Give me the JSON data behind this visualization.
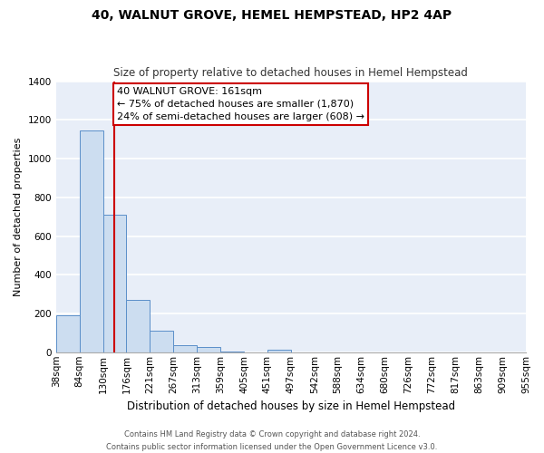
{
  "title": "40, WALNUT GROVE, HEMEL HEMPSTEAD, HP2 4AP",
  "subtitle": "Size of property relative to detached houses in Hemel Hempstead",
  "xlabel": "Distribution of detached houses by size in Hemel Hempstead",
  "ylabel": "Number of detached properties",
  "bar_values": [
    193,
    1143,
    712,
    270,
    110,
    35,
    27,
    5,
    0,
    12,
    0,
    0,
    0,
    0,
    0,
    0,
    0,
    0,
    0,
    0
  ],
  "bar_labels": [
    "38sqm",
    "84sqm",
    "130sqm",
    "176sqm",
    "221sqm",
    "267sqm",
    "313sqm",
    "359sqm",
    "405sqm",
    "451sqm",
    "497sqm",
    "542sqm",
    "588sqm",
    "634sqm",
    "680sqm",
    "726sqm",
    "772sqm",
    "817sqm",
    "863sqm",
    "909sqm",
    "955sqm"
  ],
  "bar_color": "#ccddf0",
  "bar_edge_color": "#5b8fc9",
  "plot_bg_color": "#e8eef8",
  "fig_bg_color": "#ffffff",
  "grid_color": "#ffffff",
  "ylim": [
    0,
    1400
  ],
  "yticks": [
    0,
    200,
    400,
    600,
    800,
    1000,
    1200,
    1400
  ],
  "property_line_x": 2.5,
  "property_line_color": "#cc0000",
  "annotation_text": "40 WALNUT GROVE: 161sqm\n← 75% of detached houses are smaller (1,870)\n24% of semi-detached houses are larger (608) →",
  "annotation_box_color": "#ffffff",
  "annotation_box_edge_color": "#cc0000",
  "footer_line1": "Contains HM Land Registry data © Crown copyright and database right 2024.",
  "footer_line2": "Contains public sector information licensed under the Open Government Licence v3.0.",
  "title_fontsize": 10,
  "subtitle_fontsize": 8.5,
  "xlabel_fontsize": 8.5,
  "ylabel_fontsize": 8,
  "tick_fontsize": 7.5,
  "annotation_fontsize": 8,
  "footer_fontsize": 6
}
